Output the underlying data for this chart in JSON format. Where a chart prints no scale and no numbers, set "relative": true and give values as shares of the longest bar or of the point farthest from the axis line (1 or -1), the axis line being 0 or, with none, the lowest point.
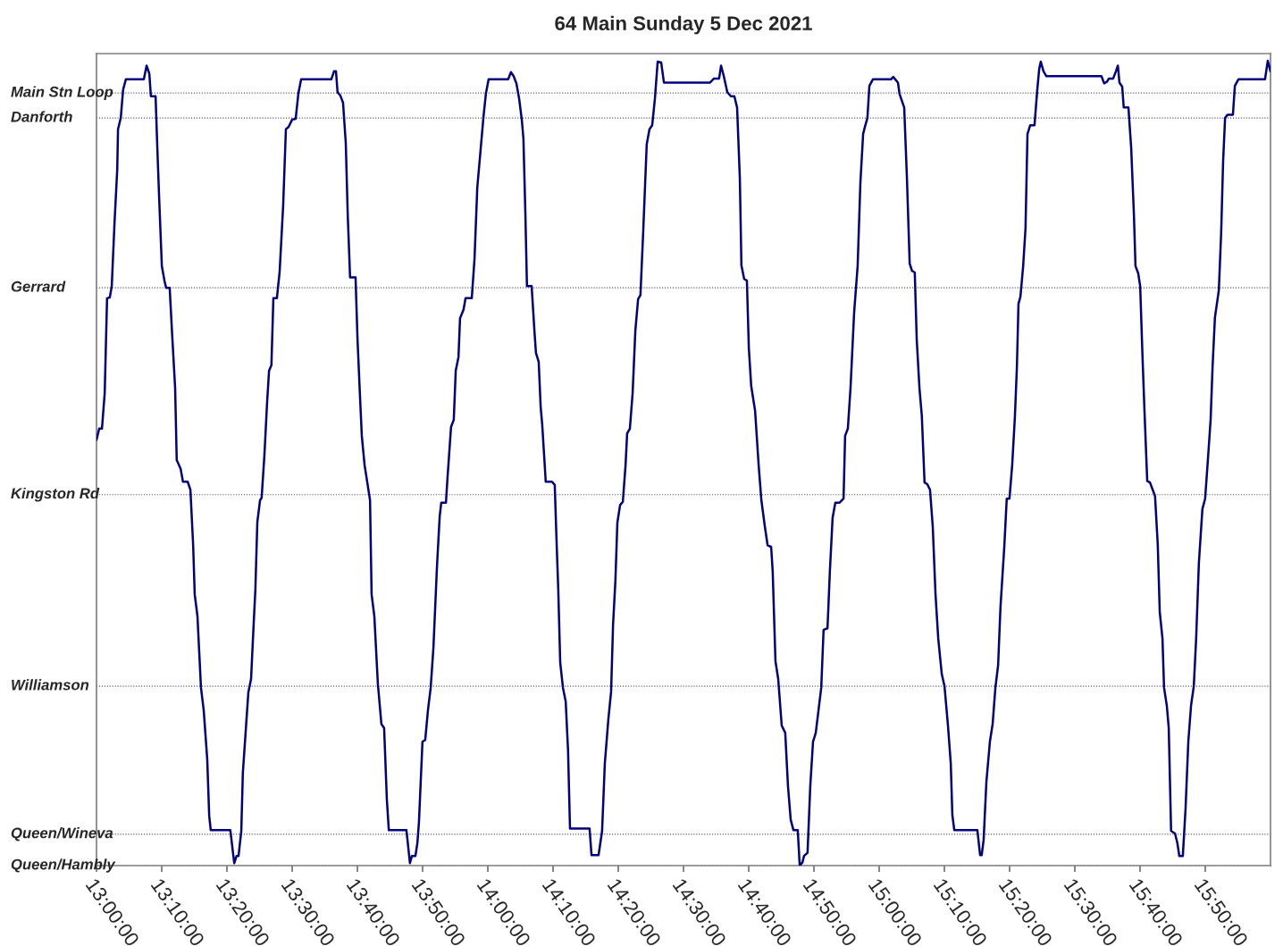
{
  "chart_data": {
    "type": "line",
    "title": "64 Main Sunday 5 Dec 2021",
    "relative": true,
    "xlim": [
      13,
      16
    ],
    "xticks": [
      {
        "value": 13.0,
        "label": "13:00:00"
      },
      {
        "value": 13.1667,
        "label": "13:10:00"
      },
      {
        "value": 13.3333,
        "label": "13:20:00"
      },
      {
        "value": 13.5,
        "label": "13:30:00"
      },
      {
        "value": 13.6667,
        "label": "13:40:00"
      },
      {
        "value": 13.8333,
        "label": "13:50:00"
      },
      {
        "value": 14.0,
        "label": "14:00:00"
      },
      {
        "value": 14.1667,
        "label": "14:10:00"
      },
      {
        "value": 14.3333,
        "label": "14:20:00"
      },
      {
        "value": 14.5,
        "label": "14:30:00"
      },
      {
        "value": 14.6667,
        "label": "14:40:00"
      },
      {
        "value": 14.8333,
        "label": "14:50:00"
      },
      {
        "value": 15.0,
        "label": "15:00:00"
      },
      {
        "value": 15.1667,
        "label": "15:10:00"
      },
      {
        "value": 15.3333,
        "label": "15:20:00"
      },
      {
        "value": 15.5,
        "label": "15:30:00"
      },
      {
        "value": 15.6667,
        "label": "15:40:00"
      },
      {
        "value": 15.8333,
        "label": "15:50:00"
      }
    ],
    "ref_lines": [
      {
        "axis": "y",
        "value": 0,
        "label": "Queen/Hambly"
      },
      {
        "axis": "y",
        "value": 0.039,
        "label": "Queen/Wineva"
      },
      {
        "axis": "y",
        "value": 0.223,
        "label": "Williamson"
      },
      {
        "axis": "y",
        "value": 0.461,
        "label": "Kingston Rd"
      },
      {
        "axis": "y",
        "value": 0.718,
        "label": "Gerrard"
      },
      {
        "axis": "y",
        "value": 0.929,
        "label": "Danforth"
      },
      {
        "axis": "y",
        "value": 0.96,
        "label": "Main Stn Loop"
      }
    ],
    "line_style": "solid",
    "series": [
      {
        "color": "#000080",
        "x": [
          13.0,
          13.007,
          13.014,
          13.021,
          13.027,
          13.034,
          13.039,
          13.046,
          13.053,
          13.055,
          13.062,
          13.068,
          13.075,
          13.121,
          13.128,
          13.135,
          13.139,
          13.151,
          13.155,
          13.16,
          13.167,
          13.174,
          13.178,
          13.187,
          13.194,
          13.201,
          13.205,
          13.215,
          13.221,
          13.233,
          13.24,
          13.247,
          13.251,
          13.258,
          13.267,
          13.274,
          13.283,
          13.288,
          13.292,
          13.342,
          13.352,
          13.358,
          13.363,
          13.37,
          13.374,
          13.381,
          13.388,
          13.395,
          13.402,
          13.406,
          13.411,
          13.418,
          13.422,
          13.429,
          13.436,
          13.441,
          13.447,
          13.452,
          13.461,
          13.468,
          13.477,
          13.484,
          13.491,
          13.5,
          13.509,
          13.516,
          13.523,
          13.6,
          13.607,
          13.612,
          13.616,
          13.623,
          13.63,
          13.637,
          13.642,
          13.648,
          13.662,
          13.667,
          13.673,
          13.678,
          13.685,
          13.692,
          13.699,
          13.703,
          13.71,
          13.719,
          13.728,
          13.735,
          13.742,
          13.747,
          13.792,
          13.801,
          13.806,
          13.815,
          13.82,
          13.824,
          13.833,
          13.84,
          13.847,
          13.854,
          13.861,
          13.87,
          13.877,
          13.881,
          13.893,
          13.897,
          13.906,
          13.913,
          13.918,
          13.925,
          13.929,
          13.938,
          13.943,
          13.959,
          13.966,
          13.973,
          13.982,
          13.989,
          13.995,
          14.002,
          14.052,
          14.059,
          14.066,
          14.073,
          14.08,
          14.087,
          14.091,
          14.096,
          14.1,
          14.112,
          14.119,
          14.123,
          14.13,
          14.135,
          14.139,
          14.148,
          14.164,
          14.171,
          14.176,
          14.18,
          14.185,
          14.192,
          14.199,
          14.205,
          14.21,
          14.26,
          14.265,
          14.283,
          14.292,
          14.299,
          14.308,
          14.315,
          14.32,
          14.326,
          14.331,
          14.338,
          14.345,
          14.352,
          14.356,
          14.363,
          14.37,
          14.377,
          14.384,
          14.39,
          14.397,
          14.406,
          14.413,
          14.42,
          14.427,
          14.434,
          14.443,
          14.45,
          14.568,
          14.578,
          14.591,
          14.596,
          14.603,
          14.612,
          14.621,
          14.63,
          14.637,
          14.644,
          14.648,
          14.655,
          14.662,
          14.667,
          14.673,
          14.683,
          14.692,
          14.699,
          14.708,
          14.715,
          14.724,
          14.728,
          14.735,
          14.742,
          14.751,
          14.76,
          14.767,
          14.774,
          14.781,
          14.792,
          14.797,
          14.804,
          14.808,
          14.817,
          14.824,
          14.831,
          14.838,
          14.845,
          14.852,
          14.858,
          14.868,
          14.874,
          14.881,
          14.888,
          14.899,
          14.909,
          14.913,
          14.92,
          14.927,
          14.936,
          14.945,
          14.952,
          14.959,
          14.963,
          14.97,
          14.975,
          14.984,
          15.03,
          15.036,
          15.048,
          15.052,
          15.064,
          15.071,
          15.078,
          15.084,
          15.091,
          15.096,
          15.103,
          15.109,
          15.116,
          15.123,
          15.13,
          15.137,
          15.144,
          15.151,
          15.16,
          15.167,
          15.176,
          15.183,
          15.187,
          15.192,
          15.251,
          15.258,
          15.262,
          15.267,
          15.274,
          15.283,
          15.29,
          15.297,
          15.304,
          15.31,
          15.32,
          15.326,
          15.333,
          15.34,
          15.347,
          15.352,
          15.356,
          15.361,
          15.368,
          15.374,
          15.379,
          15.386,
          15.397,
          15.404,
          15.409,
          15.413,
          15.42,
          15.427,
          15.568,
          15.575,
          15.582,
          15.587,
          15.598,
          15.605,
          15.61,
          15.614,
          15.621,
          15.625,
          15.637,
          15.644,
          15.651,
          15.655,
          15.662,
          15.667,
          15.673,
          15.678,
          15.685,
          15.692,
          15.699,
          15.705,
          15.712,
          15.717,
          15.724,
          15.728,
          15.735,
          15.74,
          15.746,
          15.756,
          15.762,
          15.767,
          15.776,
          15.783,
          15.79,
          15.797,
          15.804,
          15.81,
          15.817,
          15.826,
          15.833,
          15.84,
          15.847,
          15.852,
          15.858,
          15.868,
          15.874,
          15.879,
          15.884,
          15.89,
          15.904,
          15.909,
          15.918,
          15.986,
          15.993,
          16.0
        ],
        "values": [
          0.529,
          0.543,
          0.543,
          0.587,
          0.705,
          0.706,
          0.72,
          0.798,
          0.865,
          0.915,
          0.929,
          0.964,
          0.977,
          0.977,
          0.994,
          0.984,
          0.956,
          0.956,
          0.898,
          0.831,
          0.745,
          0.726,
          0.718,
          0.718,
          0.654,
          0.593,
          0.504,
          0.493,
          0.477,
          0.477,
          0.467,
          0.398,
          0.337,
          0.31,
          0.221,
          0.193,
          0.132,
          0.062,
          0.044,
          0.044,
          0.003,
          0.012,
          0.012,
          0.043,
          0.115,
          0.165,
          0.215,
          0.232,
          0.304,
          0.343,
          0.427,
          0.454,
          0.457,
          0.509,
          0.576,
          0.615,
          0.622,
          0.705,
          0.705,
          0.738,
          0.82,
          0.915,
          0.918,
          0.927,
          0.928,
          0.96,
          0.977,
          0.977,
          0.987,
          0.987,
          0.961,
          0.957,
          0.948,
          0.898,
          0.809,
          0.731,
          0.731,
          0.654,
          0.587,
          0.534,
          0.498,
          0.476,
          0.454,
          0.337,
          0.31,
          0.226,
          0.176,
          0.171,
          0.082,
          0.044,
          0.044,
          0.003,
          0.012,
          0.012,
          0.028,
          0.054,
          0.154,
          0.156,
          0.193,
          0.221,
          0.271,
          0.371,
          0.434,
          0.451,
          0.451,
          0.482,
          0.545,
          0.554,
          0.615,
          0.632,
          0.68,
          0.691,
          0.705,
          0.705,
          0.754,
          0.842,
          0.892,
          0.931,
          0.959,
          0.977,
          0.977,
          0.986,
          0.981,
          0.972,
          0.953,
          0.926,
          0.903,
          0.809,
          0.72,
          0.72,
          0.665,
          0.637,
          0.626,
          0.57,
          0.548,
          0.477,
          0.477,
          0.473,
          0.398,
          0.343,
          0.252,
          0.221,
          0.204,
          0.143,
          0.046,
          0.046,
          0.013,
          0.013,
          0.043,
          0.127,
          0.182,
          0.216,
          0.299,
          0.354,
          0.426,
          0.448,
          0.452,
          0.498,
          0.537,
          0.543,
          0.587,
          0.665,
          0.704,
          0.709,
          0.787,
          0.896,
          0.915,
          0.92,
          0.953,
          0.999,
          0.998,
          0.973,
          0.973,
          0.978,
          0.978,
          0.994,
          0.981,
          0.961,
          0.956,
          0.956,
          0.942,
          0.854,
          0.746,
          0.729,
          0.727,
          0.643,
          0.596,
          0.565,
          0.498,
          0.454,
          0.421,
          0.398,
          0.396,
          0.365,
          0.254,
          0.232,
          0.174,
          0.165,
          0.099,
          0.057,
          0.044,
          0.044,
          0,
          0.004,
          0.012,
          0.016,
          0.099,
          0.154,
          0.165,
          0.193,
          0.221,
          0.293,
          0.295,
          0.365,
          0.432,
          0.451,
          0.451,
          0.456,
          0.534,
          0.543,
          0.595,
          0.687,
          0.745,
          0.848,
          0.909,
          0.917,
          0.929,
          0.969,
          0.977,
          0.977,
          0.98,
          0.973,
          0.959,
          0.942,
          0.854,
          0.748,
          0.739,
          0.737,
          0.654,
          0.593,
          0.559,
          0.476,
          0.474,
          0.467,
          0.421,
          0.337,
          0.282,
          0.238,
          0.223,
          0.173,
          0.127,
          0.063,
          0.044,
          0.044,
          0.013,
          0.013,
          0.032,
          0.104,
          0.154,
          0.176,
          0.221,
          0.249,
          0.321,
          0.398,
          0.456,
          0.456,
          0.498,
          0.559,
          0.62,
          0.698,
          0.707,
          0.745,
          0.792,
          0.909,
          0.92,
          0.92,
          0.964,
          0.99,
          0.999,
          0.987,
          0.981,
          0.981,
          0.972,
          0.974,
          0.978,
          0.978,
          0.987,
          0.994,
          0.973,
          0.968,
          0.942,
          0.942,
          0.892,
          0.809,
          0.745,
          0.736,
          0.72,
          0.632,
          0.565,
          0.478,
          0.476,
          0.467,
          0.459,
          0.398,
          0.315,
          0.282,
          0.221,
          0.199,
          0.171,
          0.043,
          0.04,
          0.028,
          0.012,
          0.012,
          0.071,
          0.154,
          0.199,
          0.223,
          0.282,
          0.376,
          0.443,
          0.456,
          0.504,
          0.554,
          0.62,
          0.681,
          0.715,
          0.787,
          0.876,
          0.929,
          0.933,
          0.933,
          0.969,
          0.977,
          0.977,
          1,
          0.987
        ]
      }
    ]
  }
}
